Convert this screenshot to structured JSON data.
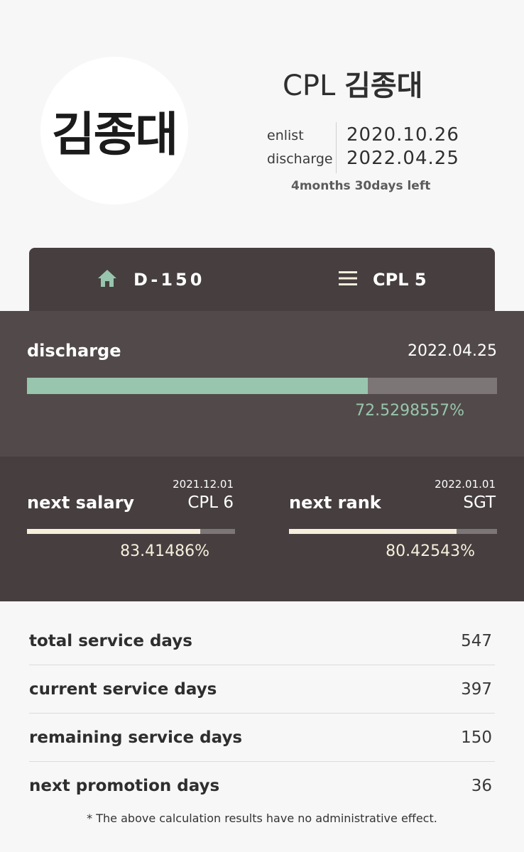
{
  "profile": {
    "avatar_text": "김종대",
    "rank": "CPL",
    "name": "김종대",
    "enlist_label": "enlist",
    "enlist_date": "2020.10.26",
    "discharge_label": "discharge",
    "discharge_date": "2022.04.25",
    "time_left": "4months 30days left"
  },
  "tabs": [
    {
      "icon": "home-icon",
      "label": "D-150"
    },
    {
      "icon": "menu-icon",
      "label": "CPL 5"
    }
  ],
  "discharge": {
    "title": "discharge",
    "date": "2022.04.25",
    "percent_text": "72.5298557%",
    "progress": 72.5298557
  },
  "next_salary": {
    "date": "2021.12.01",
    "title": "next salary",
    "value": "CPL 6",
    "percent_text": "83.41486%",
    "progress": 83.41486
  },
  "next_rank": {
    "date": "2022.01.01",
    "title": "next rank",
    "value": "SGT",
    "percent_text": "80.42543%",
    "progress": 80.42543
  },
  "stats": [
    {
      "label": "total service days",
      "value": "547"
    },
    {
      "label": "current service days",
      "value": "397"
    },
    {
      "label": "remaining service days",
      "value": "150"
    },
    {
      "label": "next promotion days",
      "value": "36"
    }
  ],
  "disclaimer": "* The above calculation results have no administrative effect.",
  "colors": {
    "accent_green": "#98c5ad",
    "accent_cream": "#f6efdc",
    "dark_panel": "#463e3f",
    "mid_panel": "#524a4a"
  }
}
